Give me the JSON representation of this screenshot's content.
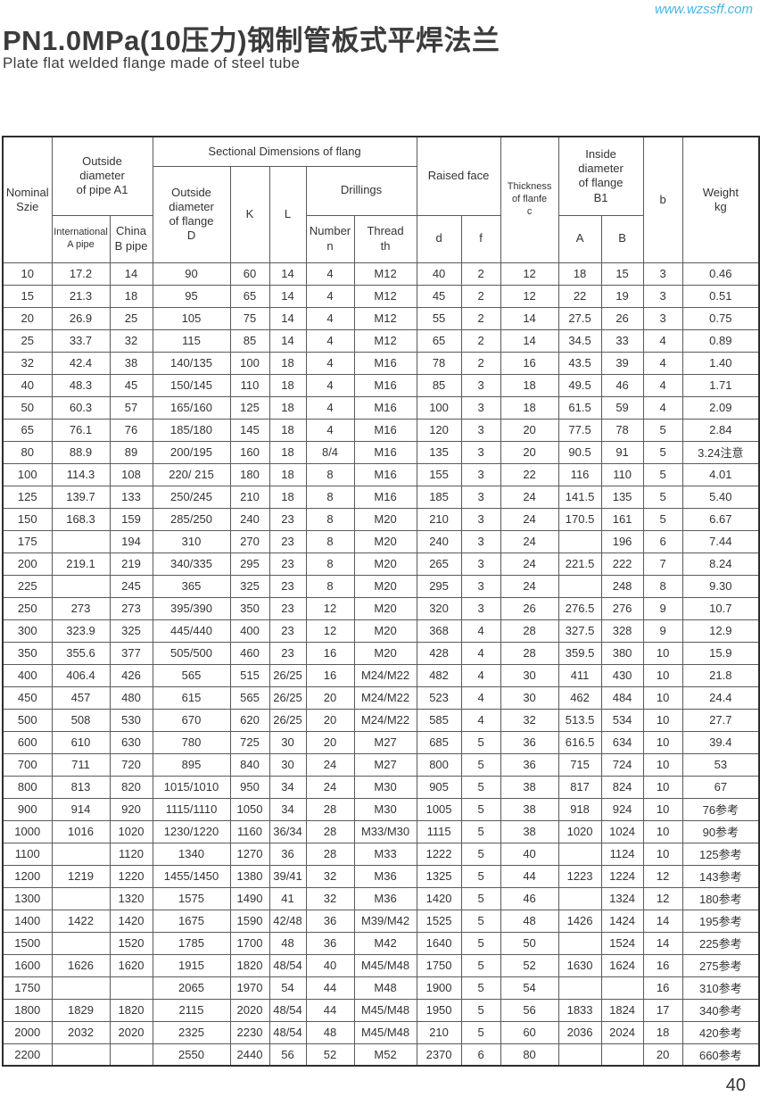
{
  "page": {
    "url": "www.wzssff.com",
    "title": "PN1.0MPa(10压力)钢制管板式平焊法兰",
    "subtitle": "Plate flat welded flange made of steel tube",
    "page_number": "40",
    "accent_color": "#49b4e4"
  },
  "table": {
    "headers": {
      "nominal_size": "Nominal\nSzie",
      "outside_pipe_a1": "Outside\ndiameter\nof pipe A1",
      "intl_a_pipe": "International\nA pipe",
      "china_b_pipe": "China\nB pipe",
      "sectional": "Sectional Dimensions of flang",
      "flange_d": "Outside\ndiameter\nof flange\nD",
      "k": "K",
      "l": "L",
      "drillings": "Drillings",
      "number_n": "Number\nn",
      "thread_th": "Thread\nth",
      "raised_face": "Raised face",
      "d": "d",
      "f": "f",
      "thickness": "Thickness\nof flanfe\nc",
      "inside_b1": "Inside\ndiameter\nof flange\nB1",
      "a_col": "A",
      "b_col": "B",
      "b_lower": "b",
      "weight": "Weight\nkg"
    },
    "column_keys": [
      "nominal_size",
      "pipe_a1_international",
      "pipe_a1_china",
      "flange_outside_diameter_d",
      "k",
      "l",
      "drilling_number_n",
      "drilling_thread",
      "raised_face_d",
      "raised_face_f",
      "thickness_c",
      "inside_diameter_a",
      "inside_diameter_b",
      "b",
      "weight_kg"
    ],
    "rows": [
      [
        "10",
        "17.2",
        "14",
        "90",
        "60",
        "14",
        "4",
        "M12",
        "40",
        "2",
        "12",
        "18",
        "15",
        "3",
        "0.46"
      ],
      [
        "15",
        "21.3",
        "18",
        "95",
        "65",
        "14",
        "4",
        "M12",
        "45",
        "2",
        "12",
        "22",
        "19",
        "3",
        "0.51"
      ],
      [
        "20",
        "26.9",
        "25",
        "105",
        "75",
        "14",
        "4",
        "M12",
        "55",
        "2",
        "14",
        "27.5",
        "26",
        "3",
        "0.75"
      ],
      [
        "25",
        "33.7",
        "32",
        "115",
        "85",
        "14",
        "4",
        "M12",
        "65",
        "2",
        "14",
        "34.5",
        "33",
        "4",
        "0.89"
      ],
      [
        "32",
        "42.4",
        "38",
        "140/135",
        "100",
        "18",
        "4",
        "M16",
        "78",
        "2",
        "16",
        "43.5",
        "39",
        "4",
        "1.40"
      ],
      [
        "40",
        "48.3",
        "45",
        "150/145",
        "110",
        "18",
        "4",
        "M16",
        "85",
        "3",
        "18",
        "49.5",
        "46",
        "4",
        "1.71"
      ],
      [
        "50",
        "60.3",
        "57",
        "165/160",
        "125",
        "18",
        "4",
        "M16",
        "100",
        "3",
        "18",
        "61.5",
        "59",
        "4",
        "2.09"
      ],
      [
        "65",
        "76.1",
        "76",
        "185/180",
        "145",
        "18",
        "4",
        "M16",
        "120",
        "3",
        "20",
        "77.5",
        "78",
        "5",
        "2.84"
      ],
      [
        "80",
        "88.9",
        "89",
        "200/195",
        "160",
        "18",
        "8/4",
        "M16",
        "135",
        "3",
        "20",
        "90.5",
        "91",
        "5",
        "3.24注意"
      ],
      [
        "100",
        "114.3",
        "108",
        "220/ 215",
        "180",
        "18",
        "8",
        "M16",
        "155",
        "3",
        "22",
        "116",
        "110",
        "5",
        "4.01"
      ],
      [
        "125",
        "139.7",
        "133",
        "250/245",
        "210",
        "18",
        "8",
        "M16",
        "185",
        "3",
        "24",
        "141.5",
        "135",
        "5",
        "5.40"
      ],
      [
        "150",
        "168.3",
        "159",
        "285/250",
        "240",
        "23",
        "8",
        "M20",
        "210",
        "3",
        "24",
        "170.5",
        "161",
        "5",
        "6.67"
      ],
      [
        "175",
        "",
        "194",
        "310",
        "270",
        "23",
        "8",
        "M20",
        "240",
        "3",
        "24",
        "",
        "196",
        "6",
        "7.44"
      ],
      [
        "200",
        "219.1",
        "219",
        "340/335",
        "295",
        "23",
        "8",
        "M20",
        "265",
        "3",
        "24",
        "221.5",
        "222",
        "7",
        "8.24"
      ],
      [
        "225",
        "",
        "245",
        "365",
        "325",
        "23",
        "8",
        "M20",
        "295",
        "3",
        "24",
        "",
        "248",
        "8",
        "9.30"
      ],
      [
        "250",
        "273",
        "273",
        "395/390",
        "350",
        "23",
        "12",
        "M20",
        "320",
        "3",
        "26",
        "276.5",
        "276",
        "9",
        "10.7"
      ],
      [
        "300",
        "323.9",
        "325",
        "445/440",
        "400",
        "23",
        "12",
        "M20",
        "368",
        "4",
        "28",
        "327.5",
        "328",
        "9",
        "12.9"
      ],
      [
        "350",
        "355.6",
        "377",
        "505/500",
        "460",
        "23",
        "16",
        "M20",
        "428",
        "4",
        "28",
        "359.5",
        "380",
        "10",
        "15.9"
      ],
      [
        "400",
        "406.4",
        "426",
        "565",
        "515",
        "26/25",
        "16",
        "M24/M22",
        "482",
        "4",
        "30",
        "411",
        "430",
        "10",
        "21.8"
      ],
      [
        "450",
        "457",
        "480",
        "615",
        "565",
        "26/25",
        "20",
        "M24/M22",
        "523",
        "4",
        "30",
        "462",
        "484",
        "10",
        "24.4"
      ],
      [
        "500",
        "508",
        "530",
        "670",
        "620",
        "26/25",
        "20",
        "M24/M22",
        "585",
        "4",
        "32",
        "513.5",
        "534",
        "10",
        "27.7"
      ],
      [
        "600",
        "610",
        "630",
        "780",
        "725",
        "30",
        "20",
        "M27",
        "685",
        "5",
        "36",
        "616.5",
        "634",
        "10",
        "39.4"
      ],
      [
        "700",
        "711",
        "720",
        "895",
        "840",
        "30",
        "24",
        "M27",
        "800",
        "5",
        "36",
        "715",
        "724",
        "10",
        "53"
      ],
      [
        "800",
        "813",
        "820",
        "1015/1010",
        "950",
        "34",
        "24",
        "M30",
        "905",
        "5",
        "38",
        "817",
        "824",
        "10",
        "67"
      ],
      [
        "900",
        "914",
        "920",
        "1115/1110",
        "1050",
        "34",
        "28",
        "M30",
        "1005",
        "5",
        "38",
        "918",
        "924",
        "10",
        "76参考"
      ],
      [
        "1000",
        "1016",
        "1020",
        "1230/1220",
        "1160",
        "36/34",
        "28",
        "M33/M30",
        "1115",
        "5",
        "38",
        "1020",
        "1024",
        "10",
        "90参考"
      ],
      [
        "1100",
        "",
        "1120",
        "1340",
        "1270",
        "36",
        "28",
        "M33",
        "1222",
        "5",
        "40",
        "",
        "1124",
        "10",
        "125参考"
      ],
      [
        "1200",
        "1219",
        "1220",
        "1455/1450",
        "1380",
        "39/41",
        "32",
        "M36",
        "1325",
        "5",
        "44",
        "1223",
        "1224",
        "12",
        "143参考"
      ],
      [
        "1300",
        "",
        "1320",
        "1575",
        "1490",
        "41",
        "32",
        "M36",
        "1420",
        "5",
        "46",
        "",
        "1324",
        "12",
        "180参考"
      ],
      [
        "1400",
        "1422",
        "1420",
        "1675",
        "1590",
        "42/48",
        "36",
        "M39/M42",
        "1525",
        "5",
        "48",
        "1426",
        "1424",
        "14",
        "195参考"
      ],
      [
        "1500",
        "",
        "1520",
        "1785",
        "1700",
        "48",
        "36",
        "M42",
        "1640",
        "5",
        "50",
        "",
        "1524",
        "14",
        "225参考"
      ],
      [
        "1600",
        "1626",
        "1620",
        "1915",
        "1820",
        "48/54",
        "40",
        "M45/M48",
        "1750",
        "5",
        "52",
        "1630",
        "1624",
        "16",
        "275参考"
      ],
      [
        "1750",
        "",
        "",
        "2065",
        "1970",
        "54",
        "44",
        "M48",
        "1900",
        "5",
        "54",
        "",
        "",
        "16",
        "310参考"
      ],
      [
        "1800",
        "1829",
        "1820",
        "2115",
        "2020",
        "48/54",
        "44",
        "M45/M48",
        "1950",
        "5",
        "56",
        "1833",
        "1824",
        "17",
        "340参考"
      ],
      [
        "2000",
        "2032",
        "2020",
        "2325",
        "2230",
        "48/54",
        "48",
        "M45/M48",
        "210",
        "5",
        "60",
        "2036",
        "2024",
        "18",
        "420参考"
      ],
      [
        "2200",
        "",
        "",
        "2550",
        "2440",
        "56",
        "52",
        "M52",
        "2370",
        "6",
        "80",
        "",
        "",
        "20",
        "660参考"
      ]
    ]
  }
}
